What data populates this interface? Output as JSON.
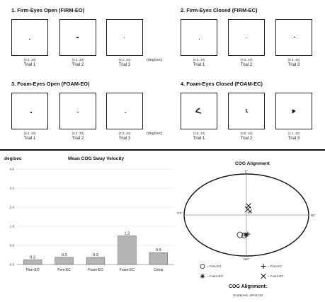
{
  "sections": [
    {
      "title": "1. Firm-Eyes Open (FIRM-EO)",
      "trials": [
        {
          "label": "Trial 1",
          "coord": "(0.3, 10)"
        },
        {
          "label": "Trial 2",
          "coord": "(0.4, 10)"
        },
        {
          "label": "Trial 3",
          "coord": "(0.1, 10)"
        }
      ]
    },
    {
      "title": "2. Firm-Eyes Closed (FIRM-EC)",
      "trials": [
        {
          "label": "Trial 1",
          "coord": "(0.3, 10)"
        },
        {
          "label": "Trial 2",
          "coord": "(0.3, 10)"
        },
        {
          "label": "Trial 3",
          "coord": "(0.3, 10)"
        }
      ]
    },
    {
      "title": "3. Foam-Eyes Open (FOAM-EO)",
      "trials": [
        {
          "label": "Trial 1",
          "coord": "(0.4, 10)"
        },
        {
          "label": "Trial 2",
          "coord": "(0.3, 10)"
        },
        {
          "label": "Trial 3",
          "coord": "(0.3, 10)"
        }
      ]
    },
    {
      "title": "4. Foam-Eyes Closed (FOAM-EC)",
      "trials": [
        {
          "label": "Trial 1",
          "coord": "(1.6, 10)"
        },
        {
          "label": "Trial 2",
          "coord": "(0.8, 10)"
        },
        {
          "label": "Trial 3",
          "coord": "(1.1, 10)"
        }
      ]
    }
  ],
  "unit_label": "(deg/sec)",
  "chart_data": [
    {
      "type": "bar",
      "title": "Mean COG Sway Velocity",
      "ylabel": "deg/sec",
      "categories": [
        "Firm-EO",
        "Firm-EC",
        "Foam-EO",
        "Foam-EC",
        "Comp"
      ],
      "values": [
        0.2,
        0.3,
        0.3,
        1.2,
        0.5
      ],
      "value_labels": [
        "0.2",
        "0.3",
        "0.3",
        "1.2",
        "0.5"
      ],
      "yticks": [
        "0.0",
        "0.8",
        "1.6",
        "2.4",
        "3.2",
        "4.0"
      ],
      "ylim": [
        0,
        4.0
      ],
      "bar_color": "#b4b4b4"
    },
    {
      "type": "scatter",
      "title": "COG Alignment",
      "angle_labels": {
        "top": "0°",
        "right": "90°",
        "bottom": "180°",
        "left": "270°"
      },
      "legend": [
        {
          "marker": "circle",
          "label": "= Firm-EO"
        },
        {
          "marker": "plus",
          "label": "= Firm-EC"
        },
        {
          "marker": "star",
          "label": "= Foam-EO"
        },
        {
          "marker": "x",
          "label": "= Foam-EC"
        }
      ],
      "status_title": "COG Alignment:",
      "status_text": "Scattered, 40%LOS"
    }
  ]
}
